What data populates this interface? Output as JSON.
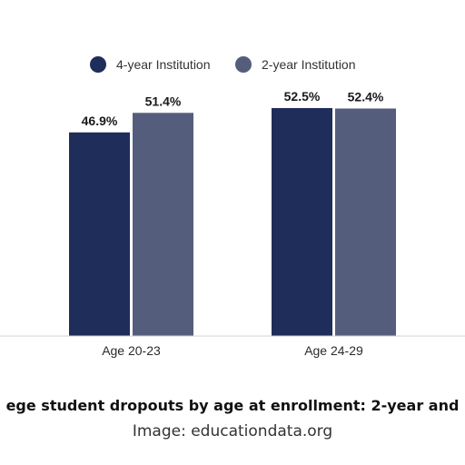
{
  "chart_data": {
    "type": "bar",
    "categories": [
      "Age 20-23",
      "Age 24-29"
    ],
    "series": [
      {
        "name": "4-year Institution",
        "color": "#1f2d5a",
        "values": [
          46.9,
          52.5
        ]
      },
      {
        "name": "2-year Institution",
        "color": "#545e7c",
        "values": [
          51.4,
          52.4
        ]
      }
    ],
    "data_labels": [
      [
        "46.9%",
        "52.5%"
      ],
      [
        "51.4%",
        "52.4%"
      ]
    ],
    "legend_position": "top-center",
    "grid": false,
    "ylim": [
      0,
      60
    ]
  },
  "caption": {
    "title": "ege student dropouts by age at enrollment: 2-year and",
    "credit": "Image: educationdata.org"
  }
}
